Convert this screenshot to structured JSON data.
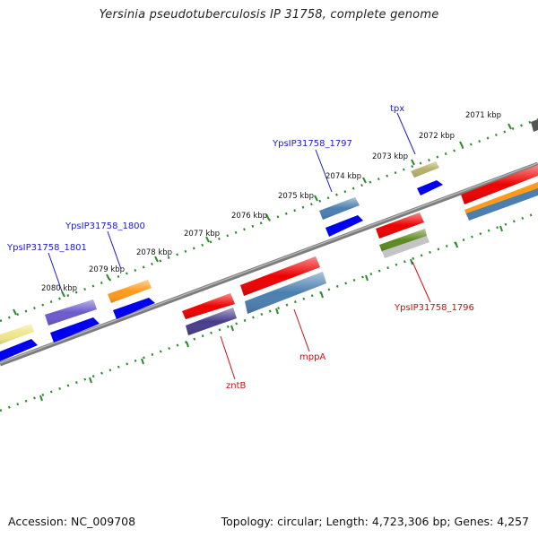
{
  "title": "Yersinia pseudotuberculosis IP 31758, complete genome",
  "footer": {
    "accession": "Accession: NC_009708",
    "topology": "Topology: circular; Length: 4,723,306 bp; Genes: 4,257"
  },
  "colors": {
    "backbone": "#8c8c8c",
    "tick": "#2e8b2e",
    "label_blue": "#1a1acc",
    "label_red": "#cc1111"
  },
  "kbp_labels": [
    "2071 kbp",
    "2072 kbp",
    "2073 kbp",
    "2074 kbp",
    "2075 kbp",
    "2076 kbp",
    "2077 kbp",
    "2078 kbp",
    "2079 kbp",
    "2080 kbp"
  ],
  "gene_labels": {
    "tpx": "tpx",
    "ypsip31758_1797": "YpsIP31758_1797",
    "ypsip31758_1800": "YpsIP31758_1800",
    "ypsip31758_1801": "YpsIP31758_1801",
    "ypsip31758_1796": "YpsIP31758_1796",
    "mppa": "mppA",
    "zntb": "zntB"
  }
}
